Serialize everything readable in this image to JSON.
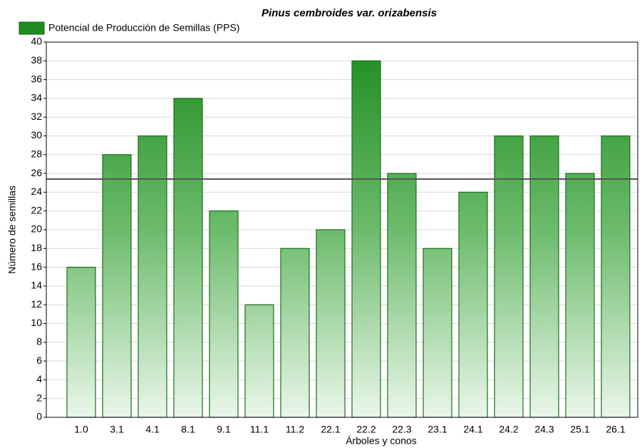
{
  "chart_data": {
    "type": "bar",
    "title": "Pinus cembroides var. orizabensis",
    "x_label": "Árboles y conos",
    "y_label": "Número de semillas",
    "series": [
      {
        "name": "Potencial de Producción de Semillas (PPS)",
        "color": "#1e8c1e",
        "values": [
          16,
          28,
          30,
          34,
          22,
          12,
          18,
          20,
          38,
          26,
          18,
          24,
          30,
          30,
          26,
          30
        ]
      }
    ],
    "categories": [
      "1.0",
      "3.1",
      "4.1",
      "8.1",
      "9.1",
      "11.1",
      "11.2",
      "22.1",
      "22.2",
      "22.3",
      "23.1",
      "24.1",
      "24.2",
      "24.3",
      "25.1",
      "26.1"
    ],
    "hline": 25.4,
    "ylim": [
      0,
      40
    ],
    "yticks": [
      0,
      2,
      4,
      6,
      8,
      10,
      12,
      14,
      16,
      18,
      20,
      22,
      24,
      26,
      28,
      30,
      32,
      34,
      36,
      38,
      40
    ],
    "grid": true
  }
}
